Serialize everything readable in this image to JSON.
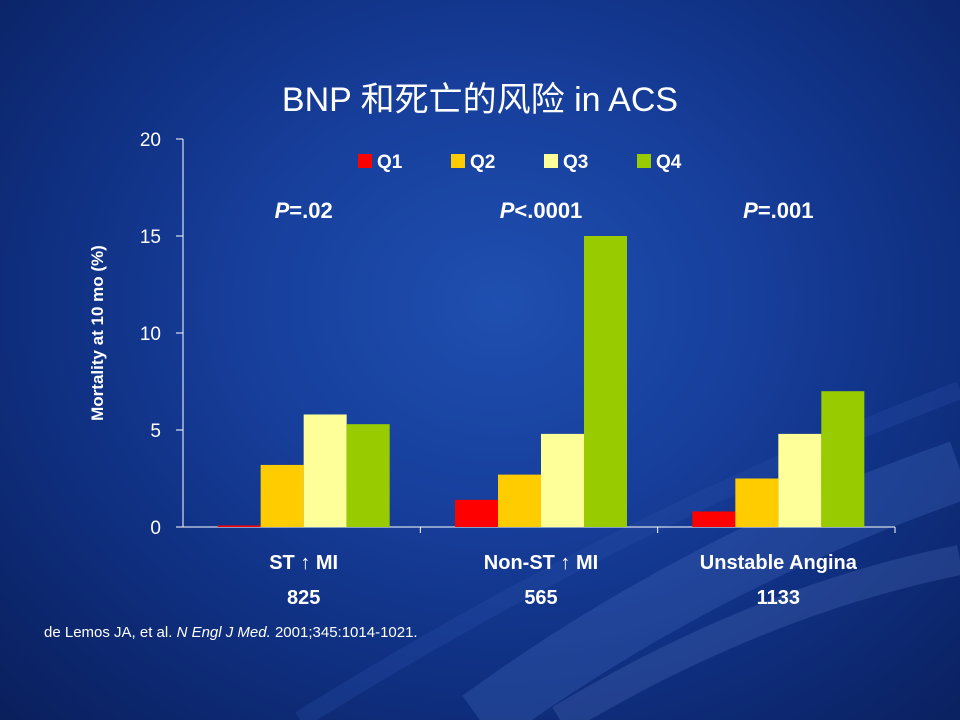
{
  "slide": {
    "title": "BNP 和死亡的风险 in ACS",
    "citation": {
      "authors": "de Lemos JA, et al.",
      "journal": "N Engl J Med.",
      "details": "2001;345:1014-1021."
    }
  },
  "chart_data": {
    "type": "bar",
    "ylabel": "Mortality at 10 mo (%)",
    "ylim": [
      0,
      20
    ],
    "yticks": [
      0,
      5,
      10,
      15,
      20
    ],
    "grid": false,
    "legend_position": "top-center",
    "categories": [
      {
        "label_prefix": "ST",
        "arrow": "↑",
        "label_suffix": "MI",
        "n": "825",
        "p_prefix": "P",
        "p_suffix": "=.02"
      },
      {
        "label_prefix": "Non-ST",
        "arrow": "↑",
        "label_suffix": "MI",
        "n": "565",
        "p_prefix": "P",
        "p_suffix": "<.0001"
      },
      {
        "label_prefix": "Unstable Angina",
        "arrow": "",
        "label_suffix": "",
        "n": "1133",
        "p_prefix": "P",
        "p_suffix": "=.001"
      }
    ],
    "series": [
      {
        "name": "Q1",
        "color": "#ff0000",
        "values": [
          0,
          1.4,
          0.8
        ]
      },
      {
        "name": "Q2",
        "color": "#ffcc00",
        "values": [
          3.2,
          2.7,
          2.5
        ]
      },
      {
        "name": "Q3",
        "color": "#ffff99",
        "values": [
          5.8,
          4.8,
          4.8
        ]
      },
      {
        "name": "Q4",
        "color": "#99cc00",
        "values": [
          5.3,
          15.0,
          7.0
        ]
      }
    ]
  }
}
